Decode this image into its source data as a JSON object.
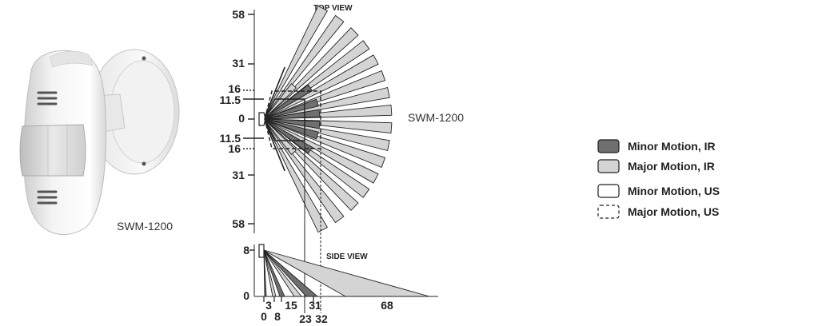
{
  "product": {
    "photo_caption": "SWM-1200",
    "diagram_caption": "SWM-1200"
  },
  "top_view": {
    "title": "TOP VIEW",
    "y_ticks": [
      "58",
      "31",
      "16",
      "11.5",
      "0",
      "11.5",
      "16",
      "31",
      "58"
    ]
  },
  "side_view": {
    "title": "SIDE VIEW",
    "y_ticks": [
      "8",
      "0"
    ],
    "x_ticks_upper": [
      "3",
      "15",
      "31",
      "68"
    ],
    "x_ticks_lower": [
      "0",
      "8",
      "23",
      "32"
    ]
  },
  "legend": {
    "items": [
      {
        "label": "Minor Motion, IR",
        "style": "dark-fill"
      },
      {
        "label": "Major Motion, IR",
        "style": "light-fill"
      },
      {
        "label": "Minor Motion, US",
        "style": "solid-outline"
      },
      {
        "label": "Major Motion, US",
        "style": "dashed-outline"
      }
    ]
  },
  "colors": {
    "minor_ir": "#6f6f6f",
    "major_ir": "#d4d4d4",
    "outline": "#222222"
  }
}
